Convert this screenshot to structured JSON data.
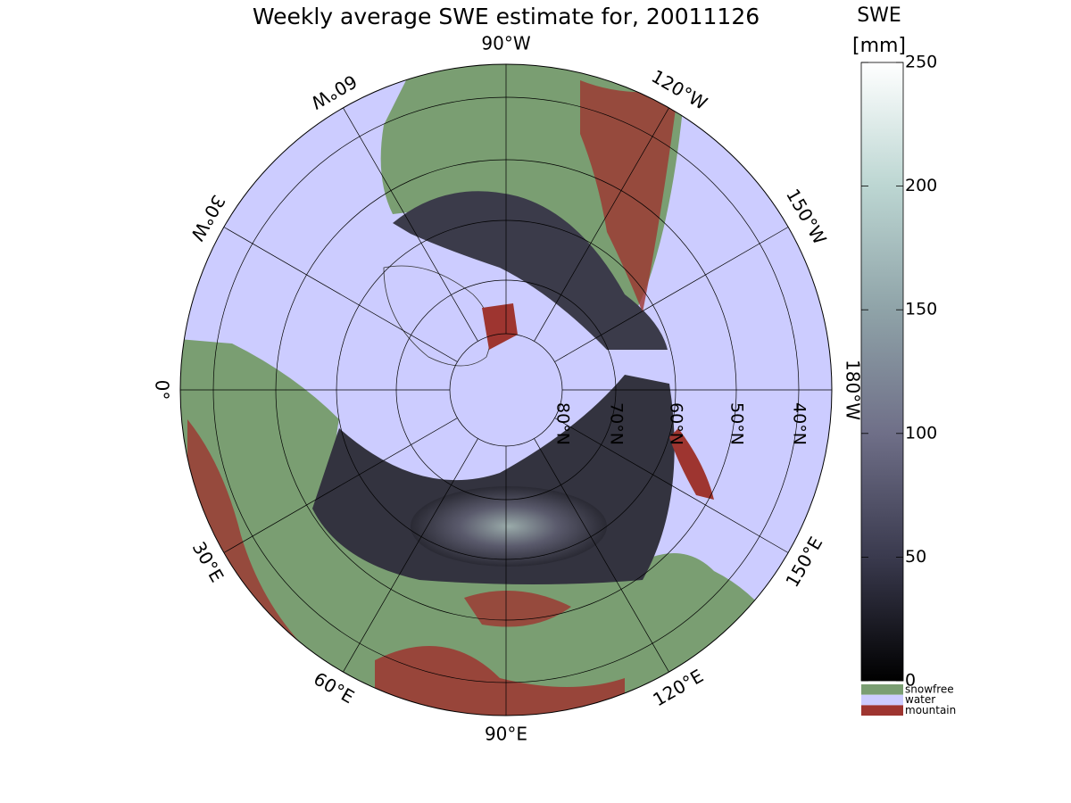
{
  "title": "Weekly average SWE estimate for, 20011126",
  "longitude_labels": [
    "90°W",
    "120°W",
    "150°W",
    "180°W",
    "150°E",
    "120°E",
    "90°E",
    "60°E",
    "30°E",
    "0°",
    "30°W",
    "60°W"
  ],
  "latitude_labels": [
    "80°N",
    "70°N",
    "60°N",
    "50°N",
    "40°N"
  ],
  "colorbar": {
    "title": "SWE",
    "unit": "[mm]",
    "ylim": [
      0,
      250
    ],
    "yticks": [
      0,
      50,
      100,
      150,
      200,
      250
    ],
    "colors": [
      "#000000",
      "#3a3a4e",
      "#6f6f88",
      "#8fa3a8",
      "#bcd6d2",
      "#ffffff"
    ]
  },
  "legend": [
    {
      "name": "snowfree",
      "color": "#7a9e72"
    },
    {
      "name": "water",
      "color": "#ccccff"
    },
    {
      "name": "mountain",
      "color": "#9e3530"
    }
  ]
}
